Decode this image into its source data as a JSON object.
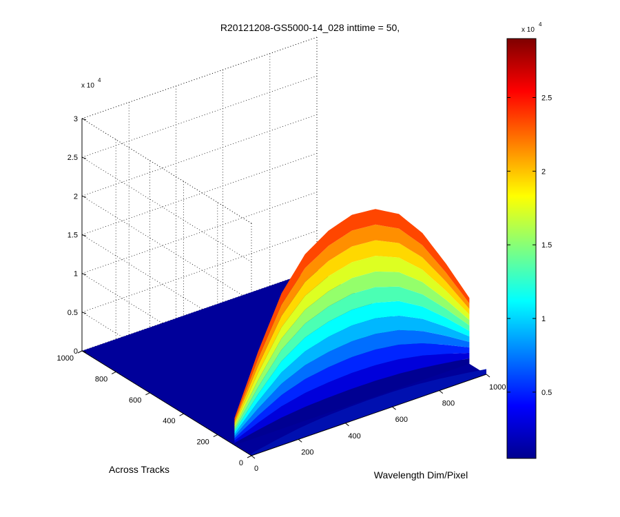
{
  "figure": {
    "title": "R20121208-GS5000-14_028 inttime = 50,"
  },
  "chart_data": [
    {
      "type": "surface",
      "title": "R20121208-GS5000-14_028 inttime = 50,",
      "xlabel": "Wavelength Dim/Pixel",
      "ylabel": "Across Tracks",
      "zlabel": "",
      "x_ticks": [
        "0",
        "200",
        "400",
        "600",
        "800",
        "1000"
      ],
      "y_ticks": [
        "0",
        "200",
        "400",
        "600",
        "800",
        "1000"
      ],
      "z_ticks": [
        "0",
        "0.5",
        "1",
        "1.5",
        "2",
        "2.5",
        "3"
      ],
      "z_exponent": {
        "base": "x 10",
        "power": "4"
      },
      "xlim": [
        0,
        1000
      ],
      "ylim": [
        0,
        1000
      ],
      "zlim": [
        0,
        30000
      ],
      "grid": true,
      "colormap": "jet",
      "color_limits": [
        500,
        29000
      ],
      "surface_profile": {
        "description": "signal confined to across-track band",
        "across_track_band": [
          0,
          100
        ],
        "wavelength_extent": [
          0,
          1000
        ],
        "x_samples": [
          0,
          100,
          200,
          300,
          400,
          500,
          600,
          700,
          800,
          900,
          1000
        ],
        "peak_z_max": [
          3500,
          11000,
          17500,
          21500,
          23500,
          24500,
          24200,
          22500,
          19000,
          14000,
          8500
        ],
        "floor_value": 0
      }
    },
    {
      "type": "colorbar",
      "ticks": [
        "0.5",
        "1",
        "1.5",
        "2",
        "2.5"
      ],
      "tick_values": [
        5000,
        10000,
        15000,
        20000,
        25000
      ],
      "range": [
        500,
        29000
      ],
      "exponent": {
        "base": "x 10",
        "power": "4"
      },
      "colormap": "jet",
      "placement": "right"
    }
  ]
}
